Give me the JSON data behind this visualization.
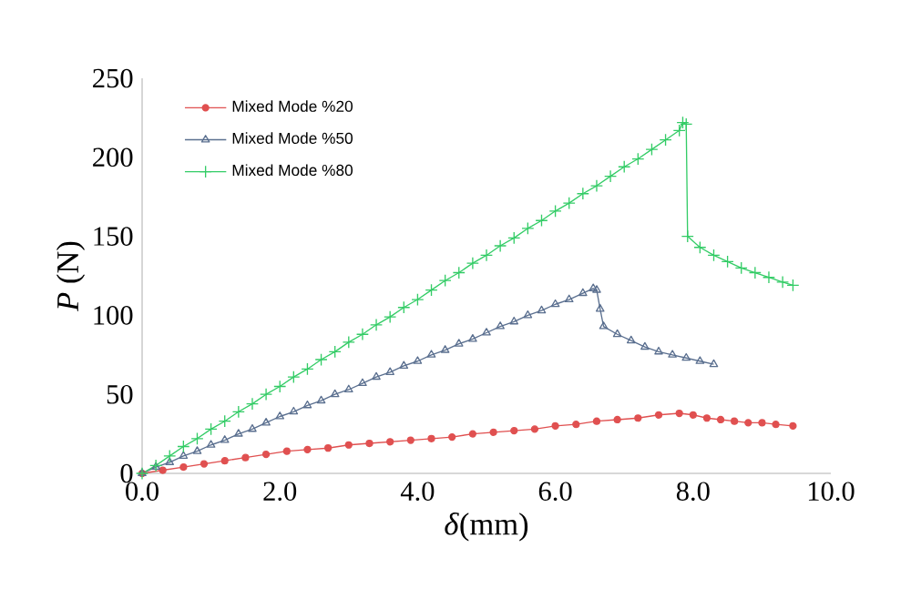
{
  "chart_data": {
    "type": "line",
    "xlabel": "*δ*(mm)",
    "ylabel": "*P* (N)",
    "xlim": [
      0,
      10
    ],
    "ylim": [
      0,
      250
    ],
    "xticks": [
      {
        "value": 0,
        "label": "0.0"
      },
      {
        "value": 2,
        "label": "2.0"
      },
      {
        "value": 4,
        "label": "4.0"
      },
      {
        "value": 6,
        "label": "6.0"
      },
      {
        "value": 8,
        "label": "8.0"
      },
      {
        "value": 10,
        "label": "10.0"
      }
    ],
    "yticks": [
      0,
      50,
      100,
      150,
      200,
      250
    ],
    "grid": false,
    "legend": "top left",
    "line_style": "solid",
    "series": [
      {
        "name": "Mixed Mode %20",
        "color": "#e05050",
        "marker": "circle",
        "x": [
          0,
          0.3,
          0.6,
          0.9,
          1.2,
          1.5,
          1.8,
          2.1,
          2.4,
          2.7,
          3.0,
          3.3,
          3.6,
          3.9,
          4.2,
          4.5,
          4.8,
          5.1,
          5.4,
          5.7,
          6.0,
          6.3,
          6.6,
          6.9,
          7.2,
          7.5,
          7.8,
          8.0,
          8.2,
          8.4,
          8.6,
          8.8,
          9.0,
          9.2,
          9.45
        ],
        "values": [
          0,
          2,
          4,
          6,
          8,
          10,
          12,
          14,
          15,
          16,
          18,
          19,
          20,
          21,
          22,
          23,
          25,
          26,
          27,
          28,
          30,
          31,
          33,
          34,
          35,
          37,
          38,
          37,
          35,
          34,
          33,
          32,
          32,
          31,
          30
        ]
      },
      {
        "name": "Mixed Mode %50",
        "color": "#5a6f8f",
        "marker": "triangle",
        "x": [
          0,
          0.2,
          0.4,
          0.6,
          0.8,
          1.0,
          1.2,
          1.4,
          1.6,
          1.8,
          2.0,
          2.2,
          2.4,
          2.6,
          2.8,
          3.0,
          3.2,
          3.4,
          3.6,
          3.8,
          4.0,
          4.2,
          4.4,
          4.6,
          4.8,
          5.0,
          5.2,
          5.4,
          5.6,
          5.8,
          6.0,
          6.2,
          6.4,
          6.55,
          6.6,
          6.65,
          6.7,
          6.9,
          7.1,
          7.3,
          7.5,
          7.7,
          7.9,
          8.1,
          8.3
        ],
        "values": [
          0,
          4,
          7,
          11,
          14,
          18,
          21,
          25,
          28,
          32,
          36,
          39,
          43,
          46,
          50,
          53,
          57,
          61,
          64,
          68,
          71,
          75,
          78,
          82,
          85,
          89,
          93,
          96,
          100,
          103,
          107,
          110,
          114,
          117,
          116,
          104,
          93,
          88,
          84,
          80,
          77,
          75,
          73,
          71,
          69
        ]
      },
      {
        "name": "Mixed Mode %80",
        "color": "#33cc66",
        "marker": "cross",
        "x": [
          0,
          0.2,
          0.4,
          0.6,
          0.8,
          1.0,
          1.2,
          1.4,
          1.6,
          1.8,
          2.0,
          2.2,
          2.4,
          2.6,
          2.8,
          3.0,
          3.2,
          3.4,
          3.6,
          3.8,
          4.0,
          4.2,
          4.4,
          4.6,
          4.8,
          5.0,
          5.2,
          5.4,
          5.6,
          5.8,
          6.0,
          6.2,
          6.4,
          6.6,
          6.8,
          7.0,
          7.2,
          7.4,
          7.6,
          7.8,
          7.85,
          7.9,
          7.92,
          8.1,
          8.3,
          8.5,
          8.7,
          8.9,
          9.1,
          9.3,
          9.45
        ],
        "values": [
          0,
          5,
          11,
          17,
          22,
          28,
          33,
          39,
          44,
          50,
          55,
          61,
          66,
          72,
          77,
          83,
          88,
          94,
          99,
          105,
          110,
          116,
          122,
          127,
          133,
          138,
          144,
          149,
          155,
          160,
          166,
          171,
          177,
          182,
          188,
          194,
          199,
          205,
          211,
          217,
          222,
          221,
          150,
          143,
          138,
          134,
          130,
          127,
          124,
          121,
          119
        ]
      }
    ]
  }
}
